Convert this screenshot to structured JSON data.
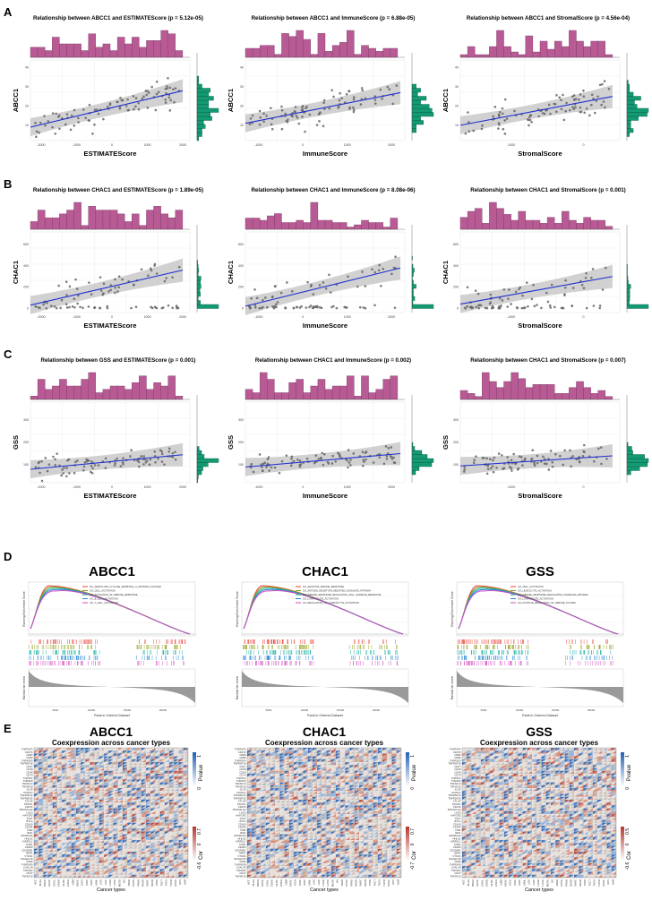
{
  "panels": {
    "A": {
      "label": "A",
      "plots": [
        {
          "title": "Relationship between ABCC1 and ESTIMATEScore (p = 5.12e-05)",
          "xlabel": "ESTIMATEScore",
          "ylabel": "ABCC1",
          "xticks": [
            "-2000",
            "-1000",
            "0",
            "1000",
            "2000"
          ],
          "yticks": [
            "10",
            "20",
            "30",
            "40"
          ]
        },
        {
          "title": "Relationship between ABCC1 and ImmuneScore (p = 6.88e-05)",
          "xlabel": "ImmuneScore",
          "ylabel": "ABCC1",
          "xticks": [
            "-1000",
            "0",
            "1000",
            "2000"
          ],
          "yticks": [
            "10",
            "20",
            "30",
            "40"
          ]
        },
        {
          "title": "Relationship between ABCC1 and StromalScore (p = 4.56e-04)",
          "xlabel": "StromalScore",
          "ylabel": "ABCC1",
          "xticks": [
            "-1000",
            "0"
          ],
          "yticks": [
            "10",
            "20",
            "30",
            "40"
          ]
        }
      ]
    },
    "B": {
      "label": "B",
      "plots": [
        {
          "title": "Relationship between CHAC1 and ESTIMATEScore (p = 1.89e-05)",
          "xlabel": "ESTIMATEScore",
          "ylabel": "CHAC1",
          "xticks": [
            "-2000",
            "-1000",
            "0",
            "1000",
            "2000"
          ],
          "yticks": [
            "0",
            "200",
            "400",
            "600"
          ]
        },
        {
          "title": "Relationship between CHAC1 and ImmuneScore (p = 8.08e-06)",
          "xlabel": "ImmuneScore",
          "ylabel": "CHAC1",
          "xticks": [
            "-1000",
            "0",
            "1000",
            "2000"
          ],
          "yticks": [
            "0",
            "200",
            "400",
            "600"
          ]
        },
        {
          "title": "Relationship between CHAC1 and StromalScore (p = 0.001)",
          "xlabel": "StromalScore",
          "ylabel": "CHAC1",
          "xticks": [
            "-1000",
            "0"
          ],
          "yticks": [
            "0",
            "200",
            "400",
            "600"
          ]
        }
      ]
    },
    "C": {
      "label": "C",
      "plots": [
        {
          "title": "Relationship between GSS and ESTIMATEScore (p = 0.001)",
          "xlabel": "ESTIMATEScore",
          "ylabel": "GSS",
          "xticks": [
            "-2000",
            "-1000",
            "0",
            "1000",
            "2000"
          ],
          "yticks": [
            "100",
            "200",
            "300"
          ]
        },
        {
          "title": "Relationship between CHAC1 and ImmuneScore (p = 0.002)",
          "xlabel": "ImmuneScore",
          "ylabel": "GSS",
          "xticks": [
            "-1000",
            "0",
            "1000",
            "2000"
          ],
          "yticks": [
            "100",
            "200",
            "300"
          ]
        },
        {
          "title": "Relationship between CHAC1 and StromalScore (p = 0.007)",
          "xlabel": "StromalScore",
          "ylabel": "GSS",
          "xticks": [
            "-1000",
            "0"
          ],
          "yticks": [
            "100",
            "200",
            "300"
          ]
        }
      ]
    },
    "D": {
      "label": "D",
      "plots": [
        {
          "title": "ABCC1",
          "ylabel_top": "Running Enrichment Score",
          "ylabel_bottom": "Ranked list metric",
          "xlabel": "Rank in Ordered Dataset",
          "xticks": [
            "5000",
            "10000",
            "15000",
            "20000"
          ],
          "legend": [
            "GO_ADENYLATE_CYCLASE_INHIBITING_G_PROTEIN_COUPLED",
            "GO_CELL_ACTIVATION",
            "GO_ACTIVATION_OF_IMMUNE_RESPONSE",
            "GO_B_CELL_ACTIVATION",
            "GO_T_CELL_ACTIVATION"
          ],
          "colors": [
            "#e8463b",
            "#8c9b10",
            "#16b0a0",
            "#2b86d6",
            "#d24fc2"
          ]
        },
        {
          "title": "CHAC1",
          "ylabel_top": "Running Enrichment Score",
          "ylabel_bottom": "Ranked list metric",
          "xlabel": "Rank in Ordered Dataset",
          "xticks": [
            "5000",
            "10000",
            "15000",
            "20000"
          ],
          "legend": [
            "GO_ADAPTIVE_IMMUNE_RESPONSE",
            "GO_ANTIGEN_RECEPTOR_MEDIATED_SIGNALING_PATHWAY",
            "GO_IMMUNE_RESPONSE_REGULATING_CELL_SURFACE_RECEPTOR",
            "GO_LYMPHOCYTE_ACTIVATION",
            "GO_REGULATION_OF_LYMPHOCYTE_ACTIVATION"
          ],
          "colors": [
            "#e8463b",
            "#8c9b10",
            "#16b0a0",
            "#2b86d6",
            "#d24fc2"
          ]
        },
        {
          "title": "GSS",
          "ylabel_top": "Running Enrichment Score",
          "ylabel_bottom": "Ranked list metric",
          "xlabel": "Rank in Ordered Dataset",
          "xticks": [
            "5000",
            "10000",
            "15000",
            "20000"
          ],
          "legend": [
            "GO_CELL_ACTIVATION",
            "GO_LEUKOCYTE_ACTIVATION",
            "GO_IMMUNE_RESPONSE_REGULATING_SIGNALING_PATHWAY",
            "GO_LYMPHOCYTE_ACTIVATION",
            "GO_POSITIVE_REGULATION_OF_IMMUNE_SYSTEM"
          ],
          "colors": [
            "#e8463b",
            "#8c9b10",
            "#16b0a0",
            "#2b86d6",
            "#d24fc2"
          ]
        }
      ]
    },
    "E": {
      "label": "E",
      "plots": [
        {
          "title": "ABCC1",
          "subtitle": "Coexpression across cancer types",
          "xlabel": "Cancer types",
          "pvalue_label": "Pvalue",
          "cor_label": "Cor",
          "pvalue_ticks": [
            "0",
            "1"
          ],
          "cor_ticks": [
            "-0.6",
            "0",
            "0.7"
          ]
        },
        {
          "title": "CHAC1",
          "subtitle": "Coexpression across cancer types",
          "xlabel": "Cancer types",
          "pvalue_label": "Pvalue",
          "cor_label": "Cor",
          "pvalue_ticks": [
            "0",
            "1"
          ],
          "cor_ticks": [
            "-0.7",
            "0",
            "0.7"
          ]
        },
        {
          "title": "GSS",
          "subtitle": "Coexpression across cancer types",
          "xlabel": "Cancer types",
          "pvalue_label": "Pvalue",
          "cor_label": "Cor",
          "pvalue_ticks": [
            "0",
            "1"
          ],
          "cor_ticks": [
            "-0.6",
            "0",
            "0.5"
          ]
        }
      ],
      "cancer_types": [
        "ACC",
        "BLCA",
        "BRCA",
        "CESC",
        "CHOL",
        "COAD",
        "DLBC",
        "ESCA",
        "GBM",
        "HNSC",
        "KICH",
        "KIRC",
        "KIRP",
        "LAML",
        "LGG",
        "LIHC",
        "LUAD",
        "LUSC",
        "MESO",
        "OV",
        "PAAD",
        "PCPG",
        "PRAD",
        "READ",
        "SARC",
        "SKCM",
        "STAD",
        "TGCT",
        "THCA",
        "THYM",
        "UCEC",
        "UCS",
        "UVM"
      ],
      "genes": [
        "TNFRSF4",
        "CD276",
        "CD80",
        "CD86",
        "TNFRSF9",
        "TNFRSF18",
        "CD27",
        "CD28",
        "CD40",
        "CD70",
        "TNFSF4",
        "TNFSF9",
        "TNFSF14",
        "TNFSF18",
        "ICOS",
        "ICOSLG",
        "TNFRSF14",
        "TNFRSF25",
        "CTLA4",
        "PDCD1",
        "CD274",
        "PDCD1LG2",
        "LAG3",
        "HAVCR2",
        "TIGIT",
        "BTLA",
        "CD160",
        "CD244",
        "VSIR",
        "IDO1",
        "ADORA2A",
        "HHLA2",
        "KIR3DL1",
        "LAIR1",
        "CD200",
        "CD200R1",
        "NRP1",
        "VTCN1",
        "SIGLEC15",
        "CD96",
        "TNFRSF8",
        "LGALS9",
        "TMIGD2",
        "CD47",
        "TNFSF15"
      ]
    }
  },
  "chart_data": [
    {
      "type": "scatter",
      "panel": "A",
      "title": "Relationship between ABCC1 and ESTIMATEScore (p = 5.12e-05)",
      "xlabel": "ESTIMATEScore",
      "ylabel": "ABCC1",
      "xlim": [
        -2300,
        2200
      ],
      "ylim": [
        2,
        44
      ],
      "trend": {
        "x": [
          -2300,
          2000
        ],
        "y": [
          9,
          28
        ]
      },
      "seed": 11,
      "n": 90,
      "noise": 7.5
    },
    {
      "type": "scatter",
      "panel": "A",
      "title": "Relationship between ABCC1 and ImmuneScore (p = 6.88e-05)",
      "xlabel": "ImmuneScore",
      "ylabel": "ABCC1",
      "xlim": [
        -1300,
        2300
      ],
      "ylim": [
        2,
        44
      ],
      "trend": {
        "x": [
          -1300,
          2200
        ],
        "y": [
          11,
          27
        ]
      },
      "seed": 23,
      "n": 90,
      "noise": 7.5
    },
    {
      "type": "scatter",
      "panel": "A",
      "title": "Relationship between ABCC1 and StromalScore (p = 4.56e-04)",
      "xlabel": "StromalScore",
      "ylabel": "ABCC1",
      "xlim": [
        -1700,
        500
      ],
      "ylim": [
        2,
        44
      ],
      "trend": {
        "x": [
          -1700,
          400
        ],
        "y": [
          10,
          25
        ]
      },
      "seed": 37,
      "n": 90,
      "noise": 7.5
    },
    {
      "type": "scatter",
      "panel": "B",
      "title": "Relationship between CHAC1 and ESTIMATEScore (p = 1.89e-05)",
      "xlabel": "ESTIMATEScore",
      "ylabel": "CHAC1",
      "xlim": [
        -2300,
        2200
      ],
      "ylim": [
        -40,
        720
      ],
      "trend": {
        "x": [
          -2300,
          2000
        ],
        "y": [
          30,
          360
        ]
      },
      "seed": 41,
      "n": 85,
      "noise": 120
    },
    {
      "type": "scatter",
      "panel": "B",
      "title": "Relationship between CHAC1 and ImmuneScore (p = 8.08e-06)",
      "xlabel": "ImmuneScore",
      "ylabel": "CHAC1",
      "xlim": [
        -1300,
        2300
      ],
      "ylim": [
        -40,
        720
      ],
      "trend": {
        "x": [
          -1300,
          2200
        ],
        "y": [
          20,
          380
        ]
      },
      "seed": 53,
      "n": 85,
      "noise": 120
    },
    {
      "type": "scatter",
      "panel": "B",
      "title": "Relationship between CHAC1 and StromalScore (p = 0.001)",
      "xlabel": "StromalScore",
      "ylabel": "CHAC1",
      "xlim": [
        -1700,
        500
      ],
      "ylim": [
        -40,
        720
      ],
      "trend": {
        "x": [
          -1700,
          400
        ],
        "y": [
          40,
          300
        ]
      },
      "seed": 61,
      "n": 85,
      "noise": 120
    },
    {
      "type": "scatter",
      "panel": "C",
      "title": "Relationship between GSS and ESTIMATEScore (p = 0.001)",
      "xlabel": "ESTIMATEScore",
      "ylabel": "GSS",
      "xlim": [
        -2300,
        2200
      ],
      "ylim": [
        20,
        380
      ],
      "trend": {
        "x": [
          -2300,
          2000
        ],
        "y": [
          80,
          145
        ]
      },
      "seed": 71,
      "n": 90,
      "noise": 45
    },
    {
      "type": "scatter",
      "panel": "C",
      "title": "Relationship between CHAC1 and ImmuneScore (p = 0.002)",
      "xlabel": "ImmuneScore",
      "ylabel": "GSS",
      "xlim": [
        -1300,
        2300
      ],
      "ylim": [
        20,
        380
      ],
      "trend": {
        "x": [
          -1300,
          2200
        ],
        "y": [
          90,
          150
        ]
      },
      "seed": 83,
      "n": 90,
      "noise": 45
    },
    {
      "type": "scatter",
      "panel": "C",
      "title": "Relationship between CHAC1 and StromalScore (p = 0.007)",
      "xlabel": "StromalScore",
      "ylabel": "GSS",
      "xlim": [
        -1700,
        500
      ],
      "ylim": [
        20,
        380
      ],
      "trend": {
        "x": [
          -1700,
          400
        ],
        "y": [
          95,
          140
        ]
      },
      "seed": 97,
      "n": 90,
      "noise": 45
    }
  ]
}
